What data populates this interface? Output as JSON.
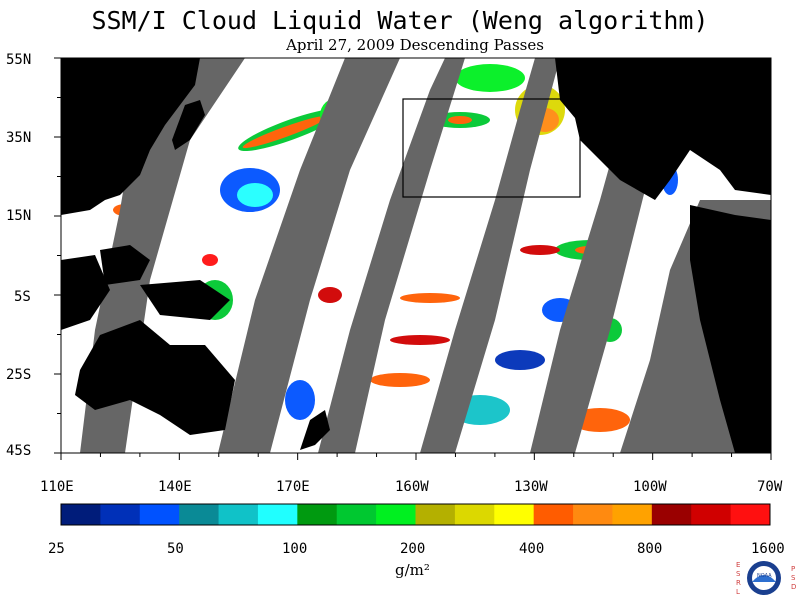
{
  "title": "SSM/I Cloud Liquid Water (Weng algorithm)",
  "subtitle": "April 27, 2009  Descending Passes",
  "lat_labels": [
    "55N",
    "35N",
    "15N",
    "5S",
    "25S",
    "45S"
  ],
  "lon_labels": [
    "110E",
    "140E",
    "170E",
    "160W",
    "130W",
    "100W",
    "70W"
  ],
  "colorbar": {
    "colors": [
      "#001c7a",
      "#0030b8",
      "#0052ff",
      "#0a8a96",
      "#10c2c8",
      "#20ffff",
      "#009a10",
      "#00c830",
      "#00f020",
      "#b4b000",
      "#dcd800",
      "#ffff00",
      "#ff5c00",
      "#ff8a10",
      "#ffa200",
      "#9a0000",
      "#d00000",
      "#ff1010"
    ],
    "labels": [
      "25",
      "50",
      "100",
      "200",
      "400",
      "800",
      "1600"
    ],
    "units": "g/m²"
  },
  "map": {
    "land_color": "#000000",
    "nodata_color": "#666666",
    "box_region": "160W-120W, 20N-45N"
  },
  "logo": {
    "left_letters": "ESRL",
    "right_letters": "PSD",
    "center_text": "NOAA"
  }
}
